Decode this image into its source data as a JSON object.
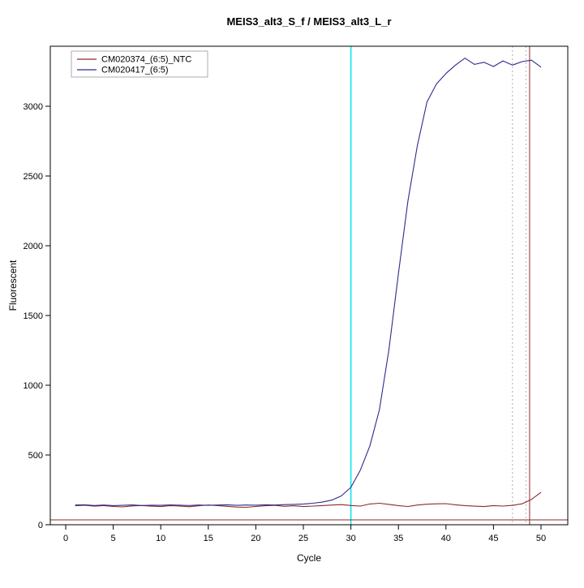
{
  "page": {
    "background": "#ffffff"
  },
  "chart_data": {
    "type": "line",
    "title": "MEIS3_alt3_S_f / MEIS3_alt3_L_r",
    "xlabel": "Cycle",
    "ylabel": "Fluorescent",
    "xlim": [
      0,
      50
    ],
    "ylim": [
      0,
      3400
    ],
    "xticks": [
      0,
      5,
      10,
      15,
      20,
      25,
      30,
      35,
      40,
      45,
      50
    ],
    "yticks": [
      0,
      500,
      1000,
      1500,
      2000,
      2500,
      3000
    ],
    "grid": "off",
    "legend_position": "top-left",
    "x": [
      1,
      2,
      3,
      4,
      5,
      6,
      7,
      8,
      9,
      10,
      11,
      12,
      13,
      14,
      15,
      16,
      17,
      18,
      19,
      20,
      21,
      22,
      23,
      24,
      25,
      26,
      27,
      28,
      29,
      30,
      31,
      32,
      33,
      34,
      35,
      36,
      37,
      38,
      39,
      40,
      41,
      42,
      43,
      44,
      45,
      46,
      47,
      48,
      49,
      50
    ],
    "series": [
      {
        "name": "CM020374_(6:5)_NTC",
        "color": "#8b2a2a",
        "values": [
          136,
          140,
          133,
          137,
          131,
          128,
          135,
          138,
          133,
          130,
          137,
          134,
          129,
          136,
          141,
          137,
          132,
          127,
          125,
          131,
          136,
          139,
          132,
          136,
          130,
          134,
          137,
          141,
          144,
          138,
          134,
          149,
          154,
          146,
          137,
          131,
          141,
          147,
          150,
          151,
          143,
          137,
          133,
          130,
          137,
          134,
          139,
          150,
          182,
          232
        ]
      },
      {
        "name": "CM020417_(6:5)",
        "color": "#2c2c8c",
        "values": [
          141,
          143,
          138,
          141,
          137,
          139,
          142,
          138,
          140,
          139,
          142,
          140,
          138,
          141,
          139,
          141,
          143,
          139,
          141,
          140,
          143,
          141,
          144,
          146,
          149,
          154,
          162,
          177,
          207,
          268,
          392,
          565,
          825,
          1255,
          1800,
          2320,
          2720,
          3030,
          3160,
          3235,
          3295,
          3345,
          3300,
          3315,
          3285,
          3325,
          3295,
          3320,
          3330,
          3280
        ]
      }
    ],
    "annotations": {
      "threshold_hline_y": 35,
      "threshold_hline_color": "#8b2a2a",
      "cyan_vline_x": 30,
      "cyan_vline_color": "#00e5ee",
      "red_vline_x": 48.8,
      "red_vline_color": "#8b2a2a",
      "dotted_vlines_x": [
        47.0,
        48.4
      ],
      "dotted_vline_color": "#9a9a9a"
    }
  }
}
